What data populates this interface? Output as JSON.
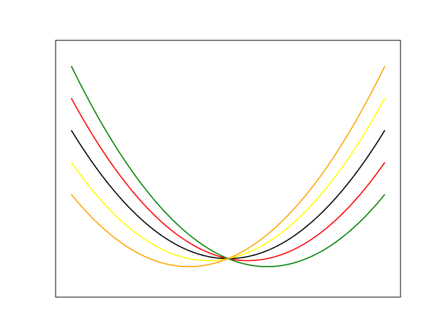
{
  "chart_data": {
    "type": "line",
    "title": "",
    "xlabel": "",
    "ylabel": "",
    "grid": false,
    "legend": "none",
    "xlim": [
      -2.2,
      2.2
    ],
    "ylim": [
      -0.6,
      3.4
    ],
    "x_domain": [
      -2.0,
      2.0
    ],
    "series": [
      {
        "color": "#000000",
        "a": 0.5,
        "b": 0.0,
        "c": 0.0,
        "x": [
          -2,
          -1,
          0,
          1,
          2
        ],
        "values": [
          2.0,
          0.5,
          0.0,
          0.5,
          2.0
        ]
      },
      {
        "color": "#ff0000",
        "a": 0.5,
        "b": -0.25,
        "c": 0.0,
        "x": [
          -2,
          -1,
          0,
          1,
          2
        ],
        "values": [
          2.5,
          0.75,
          0.0,
          0.25,
          1.5
        ]
      },
      {
        "color": "#ffff00",
        "a": 0.5,
        "b": 0.25,
        "c": 0.0,
        "x": [
          -2,
          -1,
          0,
          1,
          2
        ],
        "values": [
          1.5,
          0.25,
          0.0,
          0.75,
          2.5
        ]
      },
      {
        "color": "#008000",
        "a": 0.5,
        "b": -0.5,
        "c": 0.0,
        "x": [
          -2,
          -1,
          0,
          1,
          2
        ],
        "values": [
          3.0,
          1.0,
          0.0,
          0.0,
          1.0
        ]
      },
      {
        "color": "#ffa500",
        "a": 0.5,
        "b": 0.5,
        "c": 0.0,
        "x": [
          -2,
          -1,
          0,
          1,
          2
        ],
        "values": [
          1.0,
          0.0,
          0.0,
          1.0,
          3.0
        ]
      }
    ]
  }
}
